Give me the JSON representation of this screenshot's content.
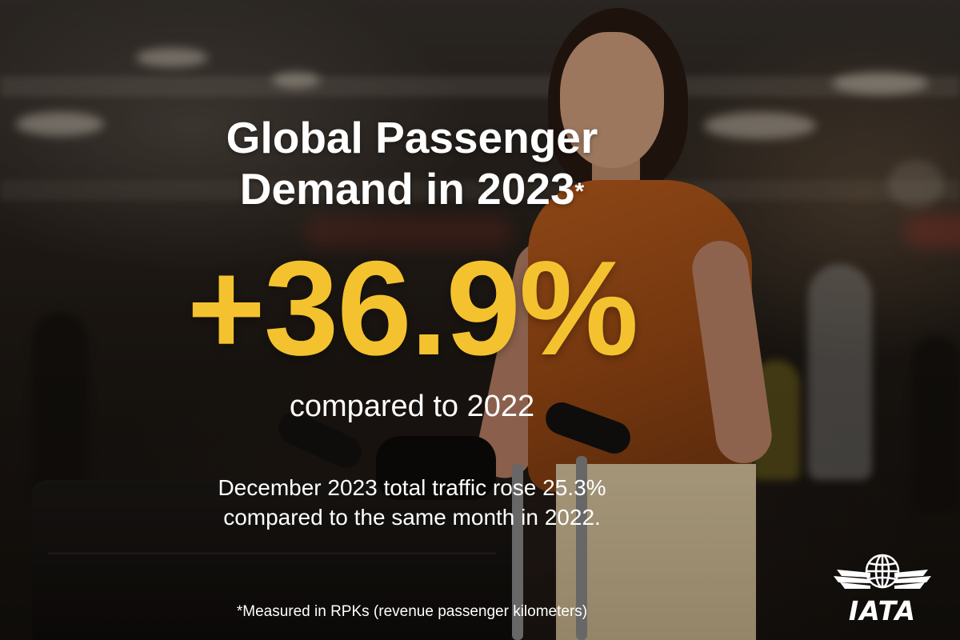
{
  "headline": {
    "line1": "Global Passenger",
    "line2": "Demand in 2023",
    "footnote_marker": "*"
  },
  "stat": {
    "value": "+36.9%",
    "accent_color": "#f4c22e"
  },
  "comparison": "compared to 2022",
  "detail": {
    "line1": "December 2023 total traffic rose 25.3%",
    "line2": "compared to the same month in 2022."
  },
  "footnote": "*Measured in RPKs (revenue passenger kilometers)",
  "logo": {
    "wordmark": "IATA",
    "icon": "globe-wings-icon"
  },
  "photo": {
    "icon": "traveler-with-luggage-cart-photo"
  }
}
